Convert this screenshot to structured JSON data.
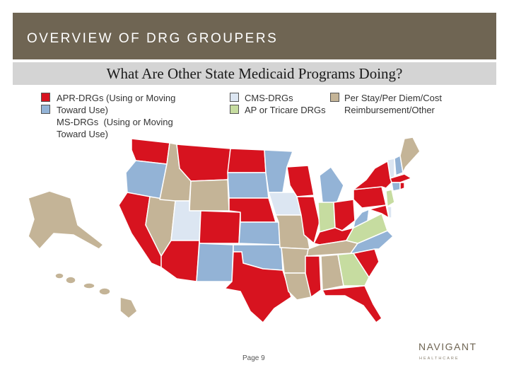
{
  "header": {
    "title": "OVERVIEW OF DRG GROUPERS"
  },
  "subtitle": "What Are Other State Medicaid Programs Doing?",
  "legend": {
    "apr": {
      "label": "APR-DRGs (Using or Moving\nToward Use)",
      "color": "#d7131f"
    },
    "ms": {
      "label": "MS-DRGs  (Using or Moving\nToward Use)",
      "color": "#93b3d6"
    },
    "cms": {
      "label": "CMS-DRGs",
      "color": "#dce6f2"
    },
    "ap": {
      "label": "AP or Tricare DRGs",
      "color": "#c6dca0"
    },
    "perstay": {
      "label": "Per Stay/Per Diem/Cost\nReimbursement/Other",
      "color": "#c4b497"
    }
  },
  "page_number": "Page 9",
  "logo": {
    "name": "NAVIGANT",
    "sub": "HEALTHCARE"
  },
  "map_colors": {
    "apr": "#d7131f",
    "ms": "#93b3d6",
    "cms": "#dce6f2",
    "ap": "#c6dca0",
    "other": "#c4b497",
    "border": "#ffffff"
  }
}
